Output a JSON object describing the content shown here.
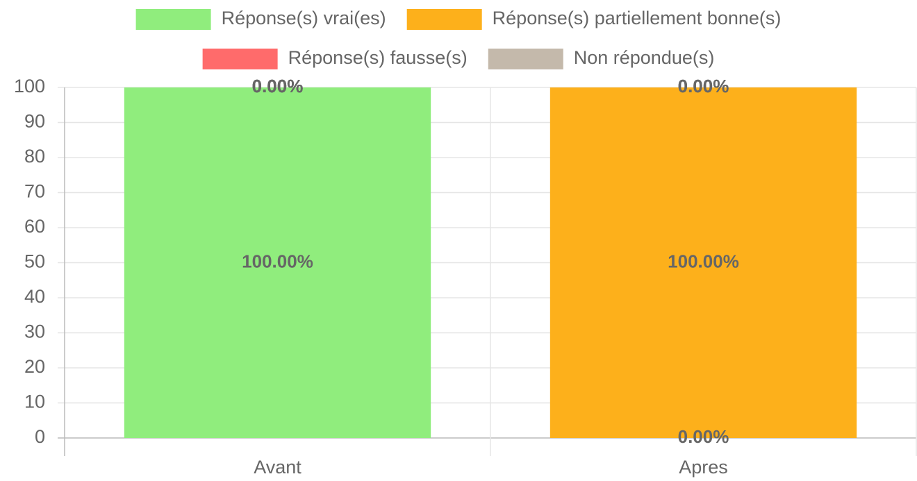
{
  "chart_data": {
    "type": "bar",
    "stacked": true,
    "categories": [
      "Avant",
      "Apres"
    ],
    "series": [
      {
        "name": "Réponse(s) vrai(es)",
        "color": "#90ed7d",
        "values": [
          100,
          0
        ],
        "value_labels": [
          "100.00%",
          "0.00%"
        ]
      },
      {
        "name": "Réponse(s) partiellement bonne(s)",
        "color": "#fdb01b",
        "values": [
          0,
          100
        ],
        "value_labels": [
          "0.00%",
          "100.00%"
        ]
      },
      {
        "name": "Réponse(s) fausse(s)",
        "color": "#ff6b6b",
        "values": [
          0,
          0
        ],
        "value_labels": [
          "0.00%",
          "0.00%"
        ]
      },
      {
        "name": "Non répondue(s)",
        "color": "#c4b9ab",
        "values": [
          0,
          0
        ],
        "value_labels": [
          "0.00%",
          "0.00%"
        ]
      }
    ],
    "ylim": [
      0,
      100
    ],
    "yticks": [
      0,
      10,
      20,
      30,
      40,
      50,
      60,
      70,
      80,
      90,
      100
    ],
    "grid": true,
    "legend": "top"
  }
}
